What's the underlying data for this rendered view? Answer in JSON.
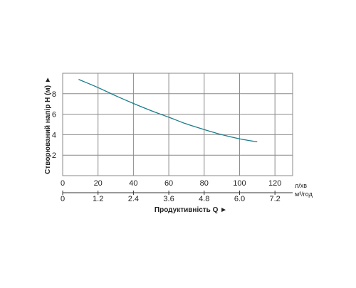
{
  "chart_data": {
    "type": "line",
    "title": "",
    "xlabel": "Продуктивність  Q  ►",
    "ylabel": "Створюваний напір H (м)  ►",
    "x_unit_primary": "л/хв",
    "x_unit_secondary": "м³/год",
    "xlim": [
      0,
      130
    ],
    "ylim": [
      0,
      10
    ],
    "x_ticks_primary": [
      "0",
      "20",
      "40",
      "60",
      "80",
      "100",
      "120"
    ],
    "x_ticks_secondary": [
      "0",
      "1.2",
      "2.4",
      "3.6",
      "4.8",
      "6.0",
      "7.2"
    ],
    "y_ticks": [
      "2",
      "4",
      "6",
      "8"
    ],
    "grid": true,
    "colors": {
      "curve": "#1a7c8c",
      "grid": "#8a8a8a",
      "axis": "#333333"
    },
    "series": [
      {
        "x": [
          9,
          20,
          30,
          40,
          50,
          60,
          70,
          80,
          90,
          100,
          110
        ],
        "y": [
          9.4,
          8.6,
          7.8,
          7.05,
          6.35,
          5.7,
          5.05,
          4.5,
          4.0,
          3.6,
          3.3
        ]
      }
    ]
  }
}
